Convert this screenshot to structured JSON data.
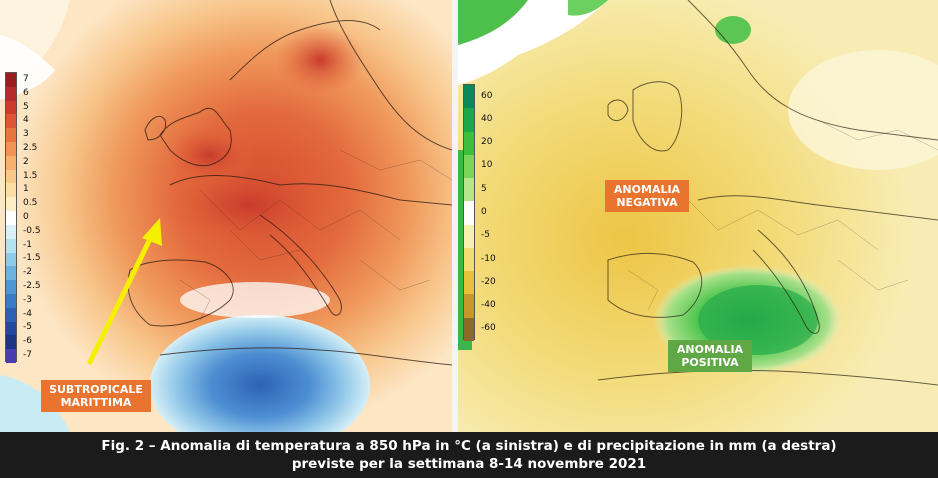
{
  "left_map": {
    "legend": [
      "7",
      "6",
      "5",
      "4",
      "3",
      "2.5",
      "2",
      "1.5",
      "1",
      "0.5",
      "0",
      "-0.5",
      "-1",
      "-1.5",
      "-2",
      "-2.5",
      "-3",
      "-4",
      "-5",
      "-6",
      "-7"
    ],
    "legend_colors": [
      "#9a1f1f",
      "#b52a2a",
      "#cc3b2b",
      "#dd5535",
      "#e8743f",
      "#f09355",
      "#f5b06f",
      "#f8c98a",
      "#fbdda5",
      "#fdeec8",
      "#ffffff",
      "#d8f0f6",
      "#b4e1ef",
      "#8fcbe8",
      "#6cb2df",
      "#4d96d3",
      "#3a7bc6",
      "#2d5fb3",
      "#23479c",
      "#1c3583",
      "#4a3cb0"
    ],
    "tag": "SUBTROPICALE\nMARITTIMA",
    "tag_color": "#e8742f"
  },
  "right_map": {
    "legend": [
      "60",
      "40",
      "20",
      "10",
      "5",
      "0",
      "-5",
      "-10",
      "-20",
      "-40",
      "-60"
    ],
    "legend_colors": [
      "#0a8a5a",
      "#1aa84a",
      "#3cbf3c",
      "#7bd35a",
      "#b8e58c",
      "#ffffff",
      "#f5efb0",
      "#f2dd70",
      "#e8c03a",
      "#c9962a",
      "#8a6a2a"
    ],
    "tag_negative": "ANOMALIA\nNEGATIVA",
    "tag_negative_color": "#e8742f",
    "tag_positive": "ANOMALIA\nPOSITIVA",
    "tag_positive_color": "#5fa845"
  },
  "caption": {
    "line1": "Fig. 2 – Anomalia di temperatura a 850 hPa in °C (a sinistra) e di precipitazione in mm (a destra)",
    "line2": "previste per la settimana 8-14 novembre 2021"
  }
}
